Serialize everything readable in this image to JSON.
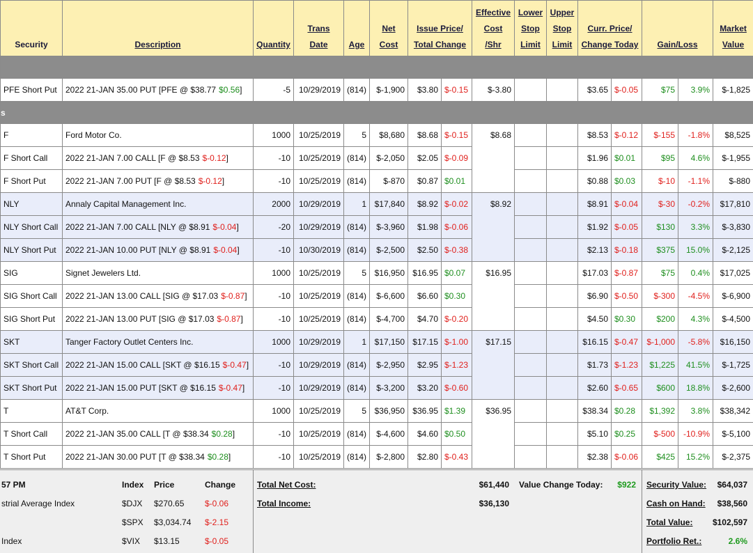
{
  "header": {
    "columns": [
      {
        "lines": [
          "Security"
        ]
      },
      {
        "lines": [
          "Description"
        ]
      },
      {
        "lines": [
          "Quantity"
        ]
      },
      {
        "lines": [
          "Trans",
          "Date"
        ]
      },
      {
        "lines": [
          "Age"
        ]
      },
      {
        "lines": [
          "Net",
          "Cost"
        ]
      },
      {
        "lines": [
          "Issue Price/",
          "Total Change"
        ]
      },
      {
        "lines": [
          "Effective",
          "Cost",
          "/Shr"
        ]
      },
      {
        "lines": [
          "Lower",
          "Stop",
          "Limit"
        ]
      },
      {
        "lines": [
          "Upper",
          "Stop",
          "Limit"
        ]
      },
      {
        "lines": [
          "Curr. Price/",
          "Change Today"
        ]
      },
      {
        "lines": [
          "Gain/Loss"
        ]
      },
      {
        "lines": [
          "Market",
          "Value"
        ]
      }
    ]
  },
  "sections": [
    {
      "label": null,
      "groups": [
        {
          "effective_cost": "$-3.80",
          "shaded": false,
          "rows": [
            {
              "sec": "PFE Short Put",
              "desc": [
                "2022 21-JAN 35.00 PUT [PFE @ $38.77",
                "$0.56",
                "]"
              ],
              "qty": "-5",
              "date": "10/29/2019",
              "age": "(814)",
              "cost": "$-1,900",
              "issue": "$3.80",
              "tchg": "$-0.15",
              "curr": "$3.65",
              "chg": "$-0.05",
              "gain": "$75",
              "pct": "3.9%",
              "mv": "$-1,825"
            }
          ]
        }
      ]
    },
    {
      "label": "s",
      "groups": [
        {
          "effective_cost": "$8.68",
          "shaded": false,
          "rows": [
            {
              "sec": "F",
              "desc": [
                "Ford Motor Co."
              ],
              "qty": "1000",
              "date": "10/25/2019",
              "age": "5",
              "cost": "$8,680",
              "issue": "$8.68",
              "tchg": "$-0.15",
              "curr": "$8.53",
              "chg": "$-0.12",
              "gain": "$-155",
              "pct": "-1.8%",
              "mv": "$8,525"
            },
            {
              "sec": "F Short Call",
              "desc": [
                "2022 21-JAN 7.00 CALL [F @ $8.53",
                "$-0.12",
                "]"
              ],
              "qty": "-10",
              "date": "10/25/2019",
              "age": "(814)",
              "cost": "$-2,050",
              "issue": "$2.05",
              "tchg": "$-0.09",
              "curr": "$1.96",
              "chg": "$0.01",
              "gain": "$95",
              "pct": "4.6%",
              "mv": "$-1,955"
            },
            {
              "sec": "F Short Put",
              "desc": [
                "2022 21-JAN 7.00 PUT [F @ $8.53",
                "$-0.12",
                "]"
              ],
              "qty": "-10",
              "date": "10/25/2019",
              "age": "(814)",
              "cost": "$-870",
              "issue": "$0.87",
              "tchg": "$0.01",
              "curr": "$0.88",
              "chg": "$0.03",
              "gain": "$-10",
              "pct": "-1.1%",
              "mv": "$-880"
            }
          ]
        },
        {
          "effective_cost": "$8.92",
          "shaded": true,
          "rows": [
            {
              "sec": "NLY",
              "desc": [
                "Annaly Capital Management Inc."
              ],
              "qty": "2000",
              "date": "10/29/2019",
              "age": "1",
              "cost": "$17,840",
              "issue": "$8.92",
              "tchg": "$-0.02",
              "curr": "$8.91",
              "chg": "$-0.04",
              "gain": "$-30",
              "pct": "-0.2%",
              "mv": "$17,810"
            },
            {
              "sec": "NLY Short Call",
              "desc": [
                "2022 21-JAN 7.00 CALL [NLY @ $8.91",
                "$-0.04",
                "]"
              ],
              "qty": "-20",
              "date": "10/29/2019",
              "age": "(814)",
              "cost": "$-3,960",
              "issue": "$1.98",
              "tchg": "$-0.06",
              "curr": "$1.92",
              "chg": "$-0.05",
              "gain": "$130",
              "pct": "3.3%",
              "mv": "$-3,830"
            },
            {
              "sec": "NLY Short Put",
              "desc": [
                "2022 21-JAN 10.00 PUT [NLY @ $8.91",
                "$-0.04",
                "]"
              ],
              "qty": "-10",
              "date": "10/30/2019",
              "age": "(814)",
              "cost": "$-2,500",
              "issue": "$2.50",
              "tchg": "$-0.38",
              "curr": "$2.13",
              "chg": "$-0.18",
              "gain": "$375",
              "pct": "15.0%",
              "mv": "$-2,125"
            }
          ]
        },
        {
          "effective_cost": "$16.95",
          "shaded": false,
          "rows": [
            {
              "sec": "SIG",
              "desc": [
                "Signet Jewelers Ltd."
              ],
              "qty": "1000",
              "date": "10/25/2019",
              "age": "5",
              "cost": "$16,950",
              "issue": "$16.95",
              "tchg": "$0.07",
              "curr": "$17.03",
              "chg": "$-0.87",
              "gain": "$75",
              "pct": "0.4%",
              "mv": "$17,025"
            },
            {
              "sec": "SIG Short Call",
              "desc": [
                "2022 21-JAN 13.00 CALL [SIG @ $17.03",
                "$-0.87",
                "]"
              ],
              "qty": "-10",
              "date": "10/25/2019",
              "age": "(814)",
              "cost": "$-6,600",
              "issue": "$6.60",
              "tchg": "$0.30",
              "curr": "$6.90",
              "chg": "$-0.50",
              "gain": "$-300",
              "pct": "-4.5%",
              "mv": "$-6,900"
            },
            {
              "sec": "SIG Short Put",
              "desc": [
                "2022 21-JAN 13.00 PUT [SIG @ $17.03",
                "$-0.87",
                "]"
              ],
              "qty": "-10",
              "date": "10/25/2019",
              "age": "(814)",
              "cost": "$-4,700",
              "issue": "$4.70",
              "tchg": "$-0.20",
              "curr": "$4.50",
              "chg": "$0.30",
              "gain": "$200",
              "pct": "4.3%",
              "mv": "$-4,500"
            }
          ]
        },
        {
          "effective_cost": "$17.15",
          "shaded": true,
          "rows": [
            {
              "sec": "SKT",
              "desc": [
                "Tanger Factory Outlet Centers Inc."
              ],
              "qty": "1000",
              "date": "10/29/2019",
              "age": "1",
              "cost": "$17,150",
              "issue": "$17.15",
              "tchg": "$-1.00",
              "curr": "$16.15",
              "chg": "$-0.47",
              "gain": "$-1,000",
              "pct": "-5.8%",
              "mv": "$16,150"
            },
            {
              "sec": "SKT Short Call",
              "desc": [
                "2022 21-JAN 15.00 CALL [SKT @ $16.15",
                "$-0.47",
                "]"
              ],
              "qty": "-10",
              "date": "10/29/2019",
              "age": "(814)",
              "cost": "$-2,950",
              "issue": "$2.95",
              "tchg": "$-1.23",
              "curr": "$1.73",
              "chg": "$-1.23",
              "gain": "$1,225",
              "pct": "41.5%",
              "mv": "$-1,725"
            },
            {
              "sec": "SKT Short Put",
              "desc": [
                "2022 21-JAN 15.00 PUT [SKT @ $16.15",
                "$-0.47",
                "]"
              ],
              "qty": "-10",
              "date": "10/29/2019",
              "age": "(814)",
              "cost": "$-3,200",
              "issue": "$3.20",
              "tchg": "$-0.60",
              "curr": "$2.60",
              "chg": "$-0.65",
              "gain": "$600",
              "pct": "18.8%",
              "mv": "$-2,600"
            }
          ]
        },
        {
          "effective_cost": "$36.95",
          "shaded": false,
          "rows": [
            {
              "sec": "T",
              "desc": [
                "AT&T Corp."
              ],
              "qty": "1000",
              "date": "10/25/2019",
              "age": "5",
              "cost": "$36,950",
              "issue": "$36.95",
              "tchg": "$1.39",
              "curr": "$38.34",
              "chg": "$0.28",
              "gain": "$1,392",
              "pct": "3.8%",
              "mv": "$38,342"
            },
            {
              "sec": "T Short Call",
              "desc": [
                "2022 21-JAN 35.00 CALL [T @ $38.34",
                "$0.28",
                "]"
              ],
              "qty": "-10",
              "date": "10/25/2019",
              "age": "(814)",
              "cost": "$-4,600",
              "issue": "$4.60",
              "tchg": "$0.50",
              "curr": "$5.10",
              "chg": "$0.25",
              "gain": "$-500",
              "pct": "-10.9%",
              "mv": "$-5,100"
            },
            {
              "sec": "T Short Put",
              "desc": [
                "2022 21-JAN 30.00 PUT [T @ $38.34",
                "$0.28",
                "]"
              ],
              "qty": "-10",
              "date": "10/25/2019",
              "age": "(814)",
              "cost": "$-2,800",
              "issue": "$2.80",
              "tchg": "$-0.43",
              "curr": "$2.38",
              "chg": "$-0.06",
              "gain": "$425",
              "pct": "15.2%",
              "mv": "$-2,375"
            }
          ]
        }
      ]
    }
  ],
  "footer": {
    "index_header": {
      "time": "57 PM",
      "index": "Index",
      "price": "Price",
      "change": "Change"
    },
    "indexes": [
      {
        "name": "strial Average Index",
        "symbol": "$DJX",
        "price": "$270.65",
        "change": "$-0.06"
      },
      {
        "name": null,
        "symbol": "$SPX",
        "price": "$3,034.74",
        "change": "$-2.15"
      },
      {
        "name": "Index",
        "symbol": "$VIX",
        "price": "$13.15",
        "change": "$-0.05"
      }
    ],
    "totals": [
      {
        "label": "Total Net Cost:",
        "value": "$61,440"
      },
      {
        "label": "Total Income:",
        "value": "$36,130"
      }
    ],
    "value_change": {
      "label": "Value Change Today:",
      "value": "$922",
      "color": "#1e9a1e"
    },
    "summary": [
      {
        "label": "Security Value:",
        "value": "$64,037"
      },
      {
        "label": "Cash on Hand:",
        "value": "$38,560"
      },
      {
        "label": "Total Value:",
        "value": "$102,597"
      },
      {
        "label": "Portfolio Ret.:",
        "value": "2.6%",
        "color": "#1e9a1e"
      }
    ]
  }
}
